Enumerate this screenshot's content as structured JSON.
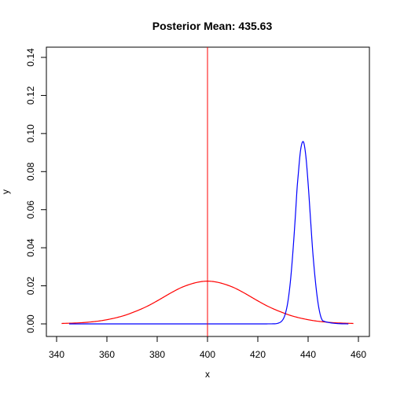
{
  "chart_data": {
    "type": "line",
    "title": "Posterior Mean: 435.63",
    "xlabel": "x",
    "ylabel": "y",
    "xlim": [
      340,
      460
    ],
    "ylim": [
      0,
      0.14
    ],
    "x_ticks": [
      340,
      360,
      380,
      400,
      420,
      440,
      460
    ],
    "y_ticks": [
      0.0,
      0.02,
      0.04,
      0.06,
      0.08,
      0.1,
      0.12,
      0.14
    ],
    "x_tick_labels": [
      "340",
      "360",
      "380",
      "400",
      "420",
      "440",
      "460"
    ],
    "y_tick_labels": [
      "0.00",
      "0.02",
      "0.04",
      "0.06",
      "0.08",
      "0.10",
      "0.12",
      "0.14"
    ],
    "grid": false,
    "series": [
      {
        "color": "#ff0000",
        "style": "solid",
        "x": [
          342,
          350,
          356,
          360,
          366,
          370,
          376,
          380,
          386,
          390,
          396,
          400,
          404,
          410,
          414,
          420,
          424,
          430,
          434,
          440,
          444,
          450,
          458
        ],
        "y": [
          0.00021,
          0.00064,
          0.00137,
          0.0022,
          0.00404,
          0.00585,
          0.00924,
          0.0121,
          0.01667,
          0.01933,
          0.02185,
          0.02245,
          0.02185,
          0.01933,
          0.01667,
          0.0121,
          0.00924,
          0.00585,
          0.00404,
          0.0022,
          0.00137,
          0.00064,
          0.00021
        ]
      },
      {
        "color": "#0000ff",
        "style": "solid",
        "x": [
          345,
          420,
          426,
          428,
          430,
          431,
          432,
          433,
          434,
          435,
          435.63,
          436,
          437,
          438,
          439,
          440,
          441,
          442,
          444,
          446,
          456
        ],
        "y": [
          0.0,
          0.0,
          4e-05,
          0.00034,
          0.00231,
          0.00559,
          0.012,
          0.02287,
          0.03868,
          0.05804,
          0.0715,
          0.0773,
          0.0912,
          0.0958,
          0.08929,
          0.0738,
          0.05421,
          0.03536,
          0.0105,
          0.0015,
          0.0
        ]
      }
    ],
    "vertical_line": {
      "x": 400,
      "color": "#ff0000"
    }
  }
}
